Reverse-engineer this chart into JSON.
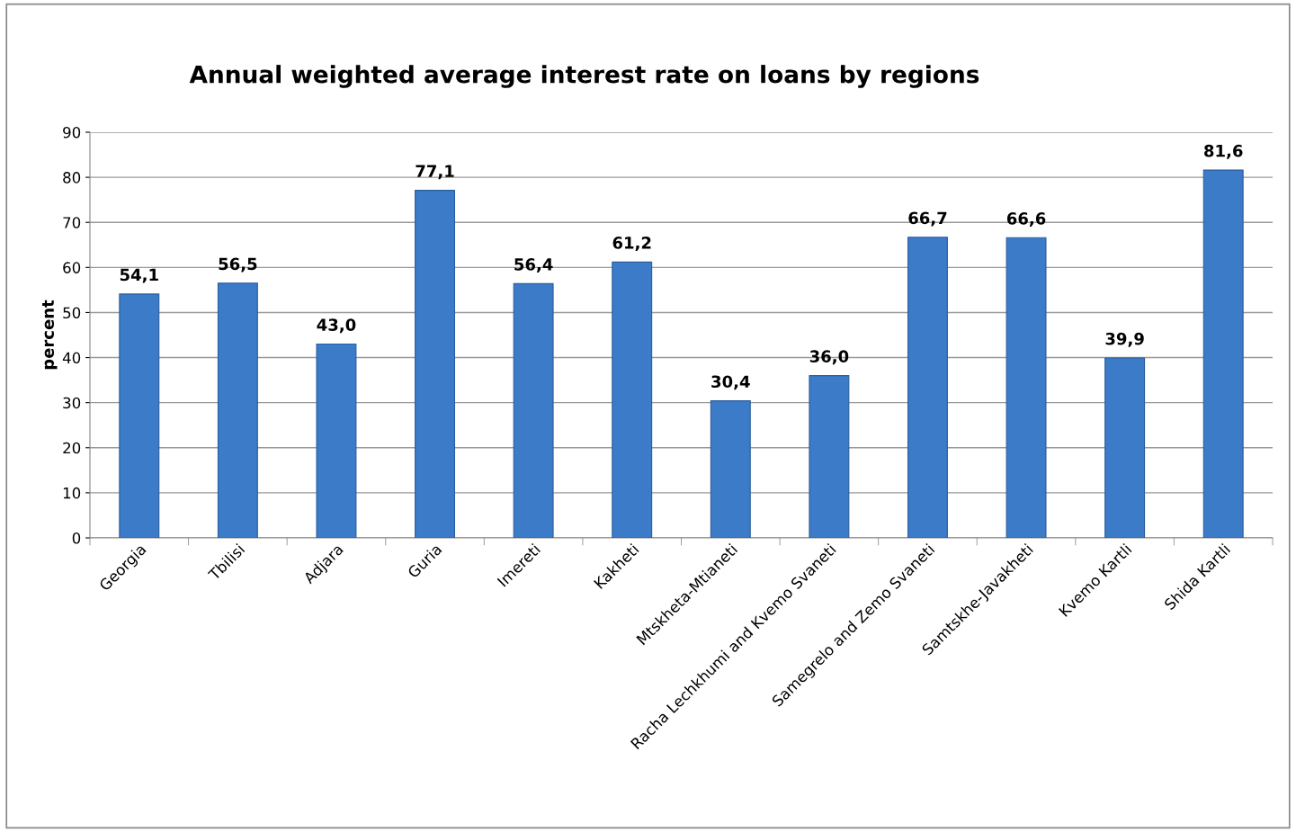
{
  "chart_data": {
    "type": "bar",
    "title": "Annual weighted average interest rate on loans by regions",
    "ylabel": "percent",
    "categories": [
      "Georgia",
      "Tbilisi",
      "Adjara",
      "Guria",
      "Imereti",
      "Kakheti",
      "Mtskheta-Mtianeti",
      "Racha Lechkhumi and Kvemo Svaneti",
      "Samegrelo and Zemo Svaneti",
      "Samtskhe-Javakheti",
      "Kvemo Kartli",
      "Shida Kartli"
    ],
    "values": [
      54.1,
      56.5,
      43.0,
      77.1,
      56.4,
      61.2,
      30.4,
      36.0,
      66.7,
      66.6,
      39.9,
      81.6
    ],
    "value_labels": [
      "54,1",
      "56,5",
      "43,0",
      "77,1",
      "56,4",
      "61,2",
      "30,4",
      "36,0",
      "66,7",
      "66,6",
      "39,9",
      "81,6"
    ],
    "color": "#3b7bc8",
    "ylim": [
      0,
      90
    ],
    "yticks": [
      0,
      10,
      20,
      30,
      40,
      50,
      60,
      70,
      80,
      90
    ],
    "grid": "y"
  }
}
